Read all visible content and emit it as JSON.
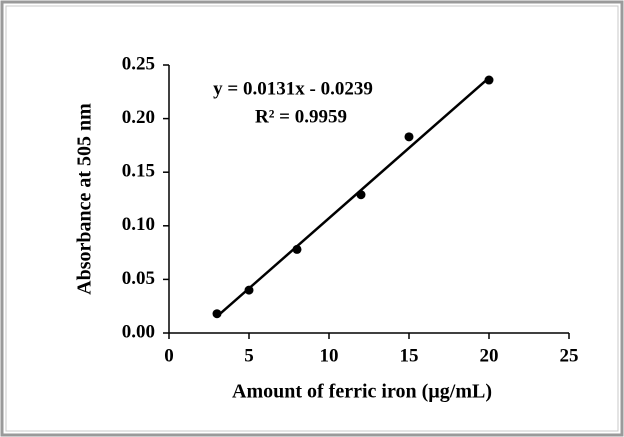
{
  "chart_data": {
    "type": "scatter",
    "x_label": "Amount of ferric iron (µg/mL)",
    "y_label": "Absorbance at 505 nm",
    "annotations": [
      "y = 0.0131x - 0.0239",
      "R² = 0.9959"
    ],
    "x": [
      3,
      5,
      8,
      12,
      15,
      20
    ],
    "values": [
      0.018,
      0.04,
      0.078,
      0.129,
      0.183,
      0.236
    ],
    "color": "#000000",
    "trendline": {
      "x": [
        3,
        20
      ],
      "values": [
        0.0154,
        0.2381
      ],
      "color": "#000000"
    },
    "xlim": [
      0,
      25
    ],
    "xticks": [
      0,
      5,
      10,
      15,
      20,
      25
    ],
    "ylim": [
      0,
      0.25
    ],
    "yticks": [
      {
        "value": 0,
        "label": "0.00"
      },
      0.05,
      {
        "value": 0.1,
        "label": "0.10"
      },
      0.15,
      {
        "value": 0.2,
        "label": "0.20"
      },
      0.25
    ],
    "grid": false
  }
}
